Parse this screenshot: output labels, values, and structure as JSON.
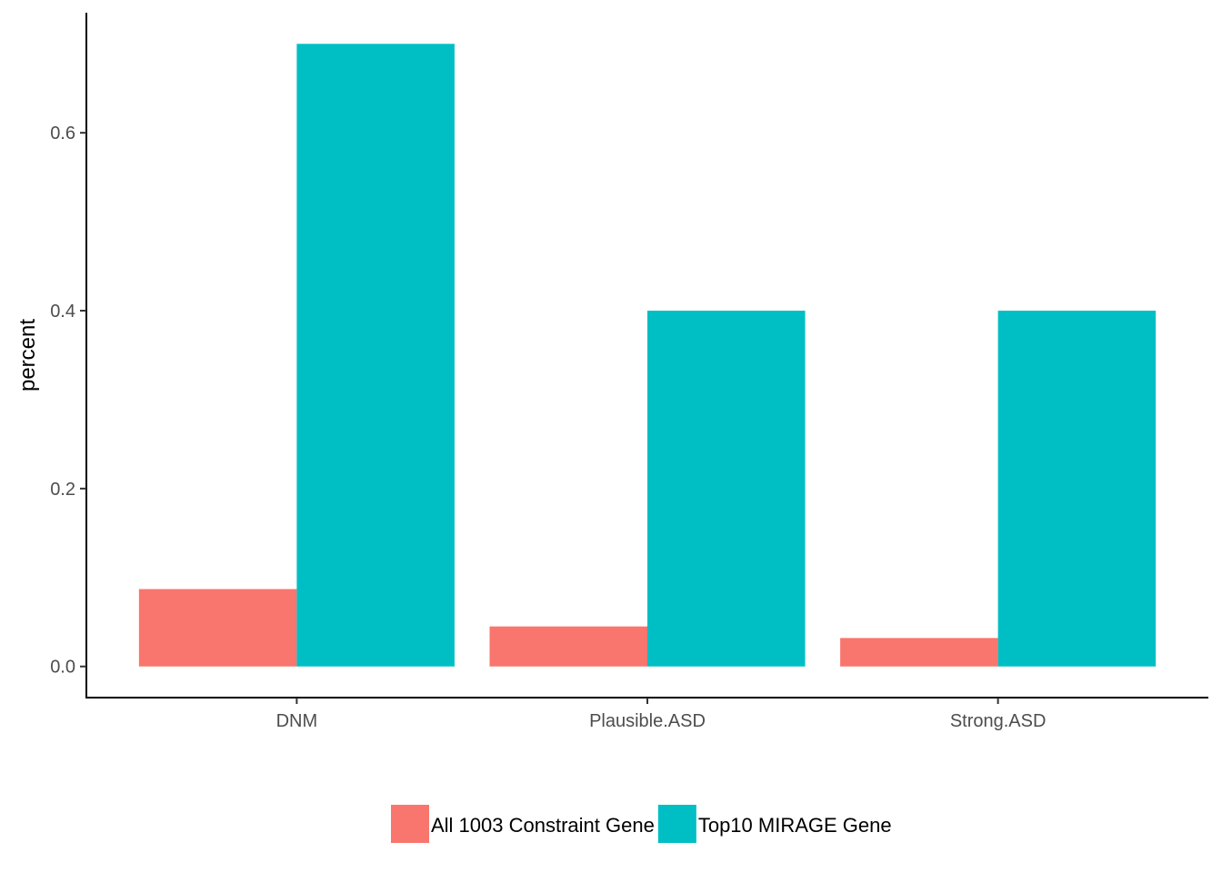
{
  "chart_data": {
    "type": "bar",
    "title": "",
    "xlabel": "",
    "ylabel": "percent",
    "categories": [
      "DNM",
      "Plausible.ASD",
      "Strong.ASD"
    ],
    "series": [
      {
        "name": "All 1003 Constraint Gene",
        "color": "#F8766D",
        "values": [
          0.087,
          0.045,
          0.032
        ]
      },
      {
        "name": "Top10 MIRAGE Gene",
        "color": "#00BFC4",
        "values": [
          0.7,
          0.4,
          0.4
        ]
      }
    ],
    "yticks": [
      "0.0",
      "0.2",
      "0.4",
      "0.6"
    ],
    "ytick_values": [
      0,
      0.2,
      0.4,
      0.6
    ],
    "ylim": [
      -0.035,
      0.735
    ],
    "grid": false,
    "legend_position": "bottom"
  }
}
